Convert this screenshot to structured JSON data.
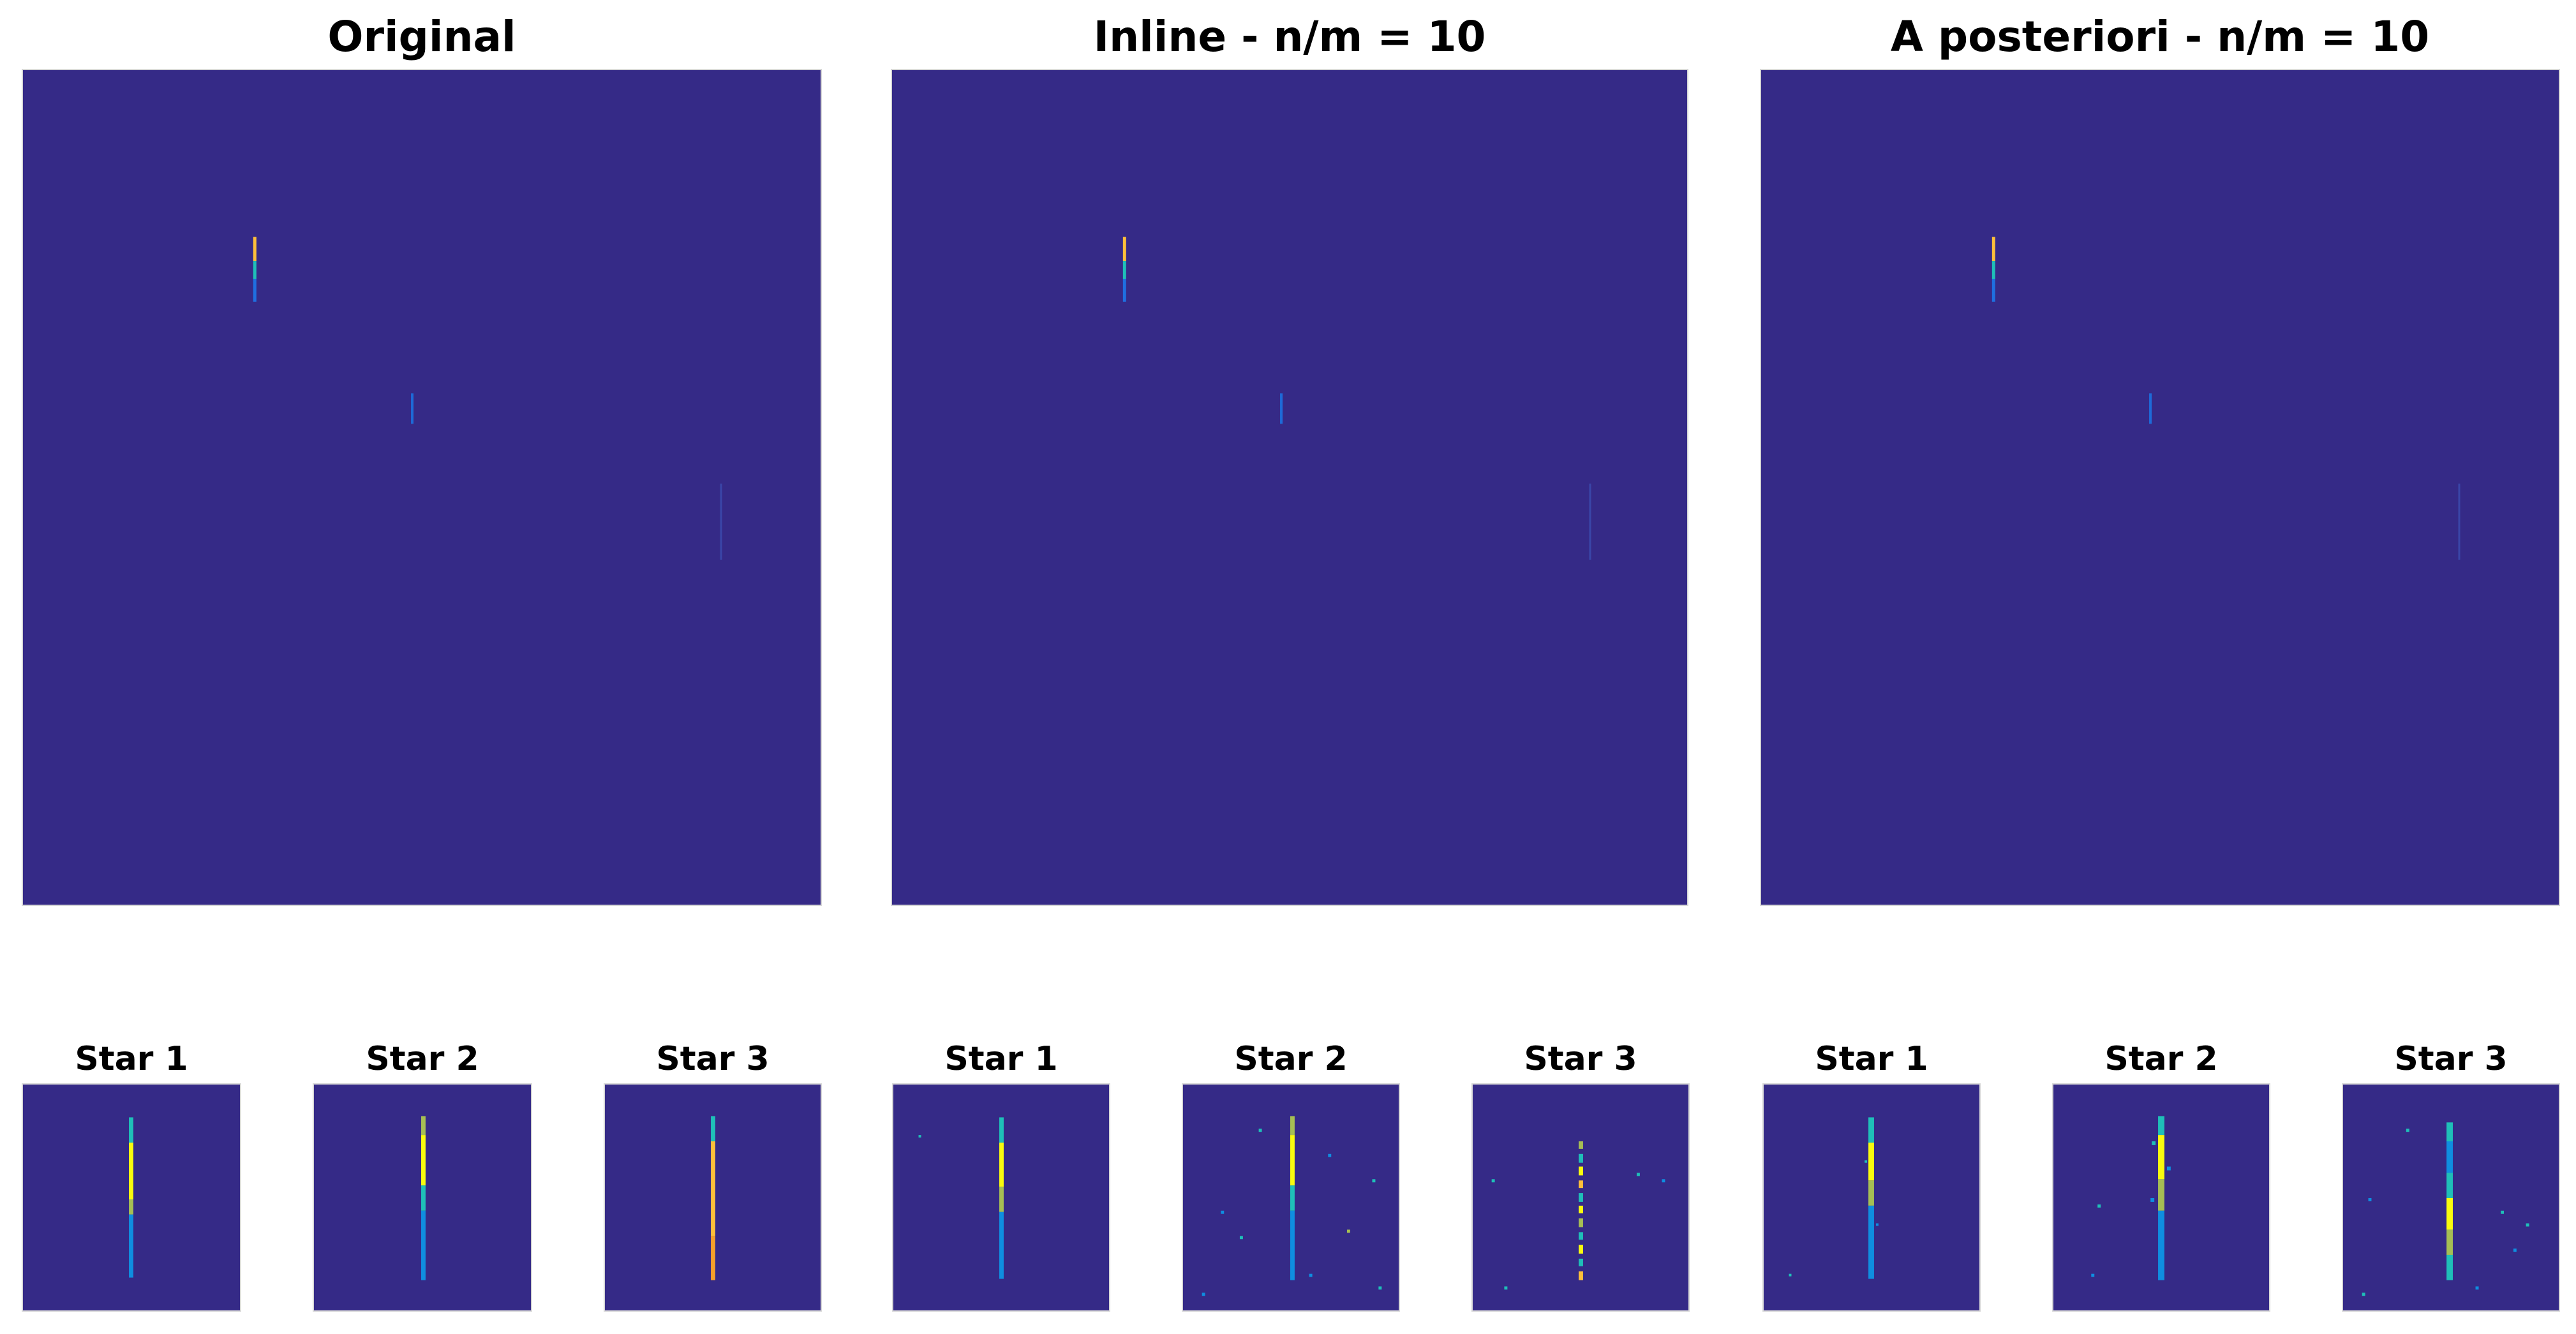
{
  "colors": {
    "background": "#352a87",
    "streak_yellow": "#f9fb0e",
    "streak_orange": "#fdbf3a",
    "streak_green": "#a6be54",
    "streak_cyan": "#1fbfb8",
    "streak_blue": "#0f8ee0"
  },
  "groups": [
    {
      "title": "Original",
      "stars": [
        {
          "label": "Star 1"
        },
        {
          "label": "Star 2"
        },
        {
          "label": "Star 3"
        }
      ]
    },
    {
      "title": "Inline - n/m = 10",
      "stars": [
        {
          "label": "Star 1"
        },
        {
          "label": "Star 2"
        },
        {
          "label": "Star 3"
        }
      ]
    },
    {
      "title": "A posteriori - n/m = 10",
      "stars": [
        {
          "label": "Star 1"
        },
        {
          "label": "Star 2"
        },
        {
          "label": "Star 3"
        }
      ]
    }
  ]
}
